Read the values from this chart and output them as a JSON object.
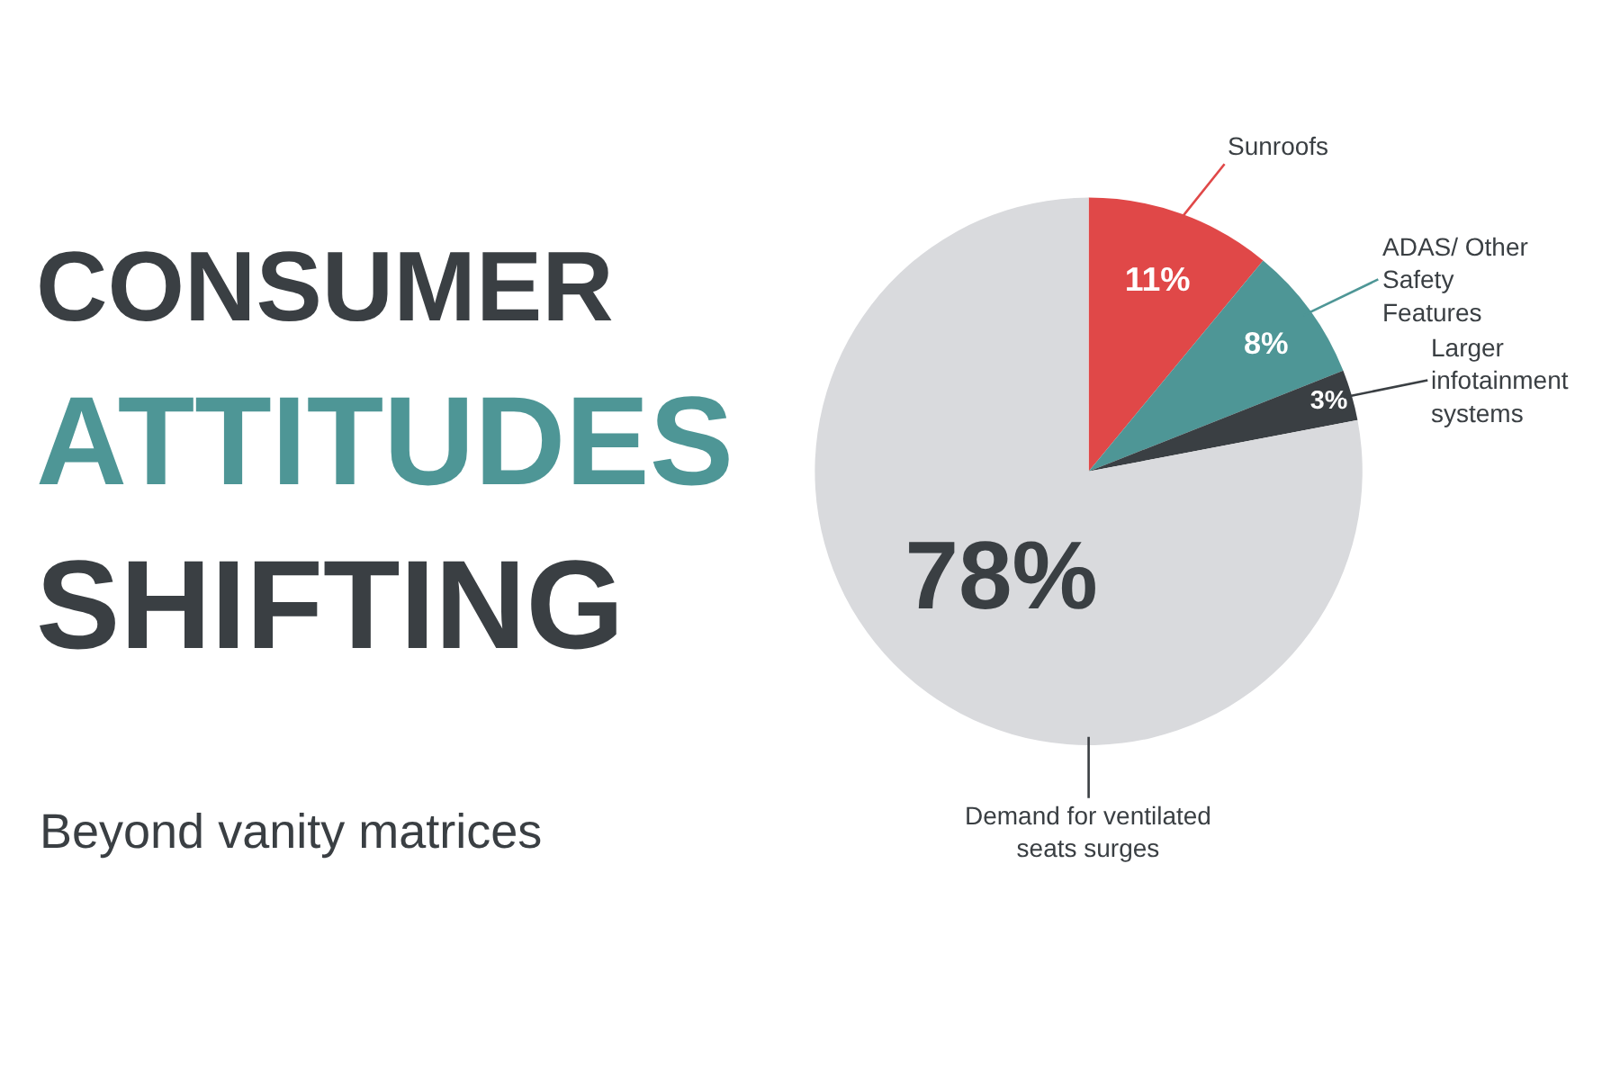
{
  "chart_data": {
    "type": "pie",
    "title": "CONSUMER ATTITUDES SHIFTING",
    "subtitle": "Beyond vanity matrices",
    "categories": [
      "Sunroofs",
      "ADAS/ Other Safety Features",
      "Larger infotainment systems",
      "Demand for ventilated seats surges"
    ],
    "values": [
      11,
      8,
      3,
      78
    ],
    "value_labels": [
      "11%",
      "8%",
      "3%",
      "78%"
    ],
    "colors": [
      "#e04848",
      "#4e9696",
      "#3a3f43",
      "#d9dadd"
    ]
  }
}
